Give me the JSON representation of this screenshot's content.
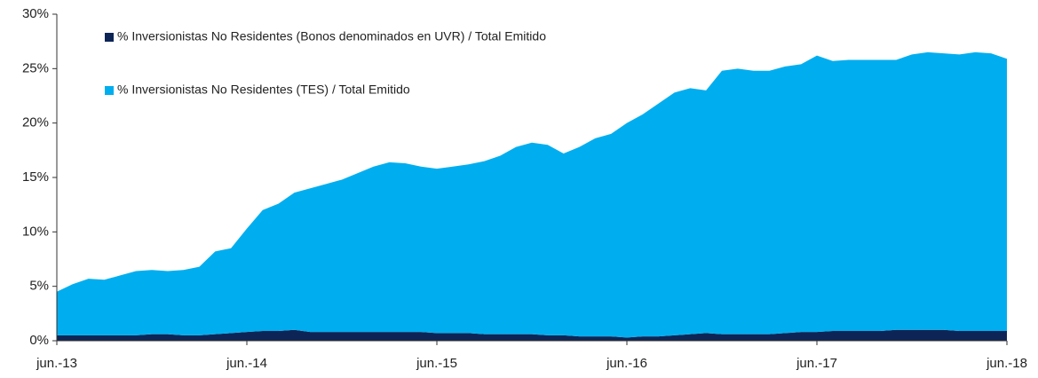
{
  "chart_data": {
    "type": "stacked-area",
    "categories": [
      "jun.-13",
      null,
      null,
      null,
      null,
      null,
      null,
      null,
      null,
      null,
      null,
      null,
      "jun.-14",
      null,
      null,
      null,
      null,
      null,
      null,
      null,
      null,
      null,
      null,
      null,
      "jun.-15",
      null,
      null,
      null,
      null,
      null,
      null,
      null,
      null,
      null,
      null,
      null,
      "jun.-16",
      null,
      null,
      null,
      null,
      null,
      null,
      null,
      null,
      null,
      null,
      null,
      "jun.-17",
      null,
      null,
      null,
      null,
      null,
      null,
      null,
      null,
      null,
      null,
      null,
      "jun.-18"
    ],
    "series": [
      {
        "name": "% Inversionistas No Residentes (Bonos denominados en UVR) / Total Emitido",
        "color": "#0d2556",
        "values": [
          0.5,
          0.5,
          0.5,
          0.5,
          0.5,
          0.5,
          0.6,
          0.6,
          0.5,
          0.5,
          0.6,
          0.7,
          0.8,
          0.9,
          0.9,
          1.0,
          0.8,
          0.8,
          0.8,
          0.8,
          0.8,
          0.8,
          0.8,
          0.8,
          0.7,
          0.7,
          0.7,
          0.6,
          0.6,
          0.6,
          0.6,
          0.5,
          0.5,
          0.4,
          0.4,
          0.4,
          0.3,
          0.4,
          0.4,
          0.5,
          0.6,
          0.7,
          0.6,
          0.6,
          0.6,
          0.6,
          0.7,
          0.8,
          0.8,
          0.9,
          0.9,
          0.9,
          0.9,
          1.0,
          1.0,
          1.0,
          1.0,
          0.9,
          0.9,
          0.9,
          0.9
        ]
      },
      {
        "name": "% Inversionistas No Residentes (TES) / Total Emitido",
        "color": "#00aeef",
        "values": [
          4.0,
          4.7,
          5.2,
          5.1,
          5.5,
          5.9,
          5.9,
          5.8,
          6.0,
          6.3,
          7.6,
          7.8,
          9.5,
          11.1,
          11.7,
          12.6,
          13.2,
          13.6,
          14.0,
          14.6,
          15.2,
          15.6,
          15.5,
          15.2,
          15.1,
          15.3,
          15.5,
          15.9,
          16.4,
          17.2,
          17.6,
          17.5,
          16.7,
          17.4,
          18.2,
          18.6,
          19.7,
          20.4,
          21.4,
          22.3,
          22.6,
          22.3,
          24.2,
          24.4,
          24.2,
          24.2,
          24.5,
          24.6,
          25.4,
          24.8,
          24.9,
          24.9,
          24.9,
          24.8,
          25.3,
          25.5,
          25.4,
          25.4,
          25.6,
          25.5,
          25.0
        ]
      }
    ],
    "ylim": [
      0,
      30
    ],
    "yticks": [
      {
        "value": 0,
        "label": "0%"
      },
      {
        "value": 5,
        "label": "5%"
      },
      {
        "value": 10,
        "label": "10%"
      },
      {
        "value": 15,
        "label": "15%"
      },
      {
        "value": 20,
        "label": "20%"
      },
      {
        "value": 25,
        "label": "25%"
      },
      {
        "value": 30,
        "label": "30%"
      }
    ],
    "grid": false,
    "legend": "upper left"
  }
}
